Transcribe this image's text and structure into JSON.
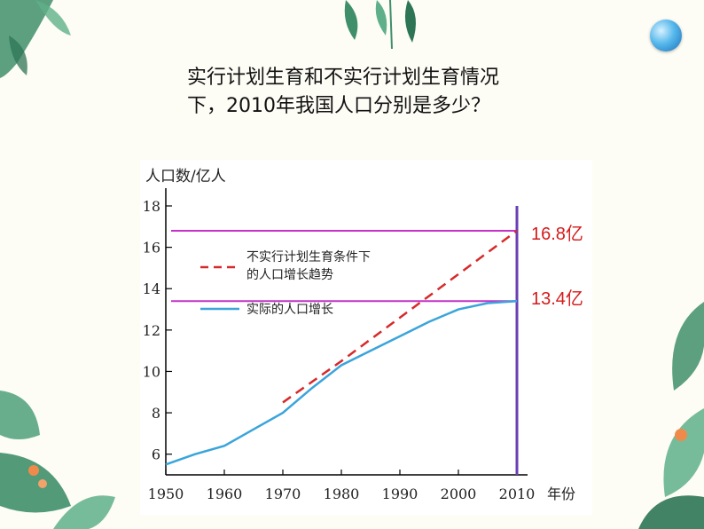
{
  "question": {
    "line1": "实行计划生育和不实行计划生育情况",
    "line2": "下，2010年我国人口分别是多少？"
  },
  "annotations": {
    "high": "16.8亿",
    "low": "13.4亿"
  },
  "colors": {
    "actual": "#3aa4db",
    "projection": "#d62a2a",
    "reference": "#c432c8",
    "marker": "#6a3fb5",
    "annotation": "#d41b1b",
    "leaf": "#3f8f6a"
  },
  "chart_data": {
    "type": "line",
    "title": "",
    "ylabel": "人口数/亿人",
    "xlabel": "年份",
    "xlim": [
      1950,
      2010
    ],
    "ylim": [
      5,
      18
    ],
    "xticks": [
      1950,
      1960,
      1970,
      1980,
      1990,
      2000,
      2010
    ],
    "yticks": [
      6,
      8,
      10,
      12,
      14,
      16,
      18
    ],
    "series": [
      {
        "name": "实际的人口增长",
        "style": "solid",
        "x": [
          1950,
          1955,
          1960,
          1965,
          1970,
          1975,
          1980,
          1985,
          1990,
          1995,
          2000,
          2005,
          2010
        ],
        "y": [
          5.5,
          6.0,
          6.4,
          7.2,
          8.0,
          9.2,
          10.3,
          11.0,
          11.7,
          12.4,
          13.0,
          13.3,
          13.4
        ]
      },
      {
        "name": "不实行计划生育条件下的人口增长趋势",
        "style": "dashed",
        "x": [
          1970,
          1980,
          1990,
          2000,
          2010
        ],
        "y": [
          8.5,
          10.5,
          12.6,
          14.7,
          16.8
        ]
      }
    ],
    "reference_lines": [
      {
        "label": "16.8亿",
        "y": 16.8
      },
      {
        "label": "13.4亿",
        "y": 13.4
      }
    ],
    "vertical_marker": {
      "x": 2010
    },
    "legend": {
      "placement": "upper-left",
      "dashed_label_line1": "不实行计划生育条件下",
      "dashed_label_line2": "的人口增长趋势",
      "solid_label": "实际的人口增长"
    }
  }
}
